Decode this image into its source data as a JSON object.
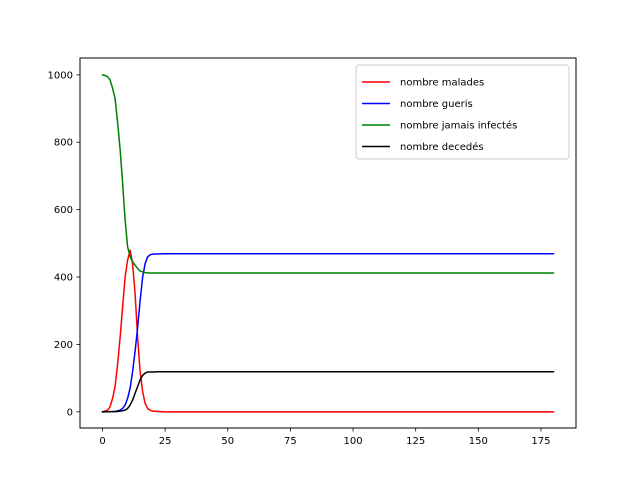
{
  "chart_data": {
    "type": "line",
    "title": "",
    "xlabel": "",
    "ylabel": "",
    "xlim": [
      -9,
      189
    ],
    "ylim": [
      -48,
      1050
    ],
    "xticks": [
      0,
      25,
      50,
      75,
      100,
      125,
      150,
      175
    ],
    "yticks": [
      0,
      200,
      400,
      600,
      800,
      1000
    ],
    "grid": false,
    "legend": {
      "placement": "top-right"
    },
    "series": [
      {
        "name": "nombre malades",
        "color": "#ff0000",
        "points": [
          [
            0,
            0
          ],
          [
            2,
            5
          ],
          [
            3,
            15
          ],
          [
            4,
            40
          ],
          [
            5,
            75
          ],
          [
            6,
            140
          ],
          [
            7,
            220
          ],
          [
            8,
            310
          ],
          [
            9,
            400
          ],
          [
            10,
            450
          ],
          [
            11,
            480
          ],
          [
            12,
            440
          ],
          [
            13,
            350
          ],
          [
            14,
            220
          ],
          [
            15,
            120
          ],
          [
            16,
            60
          ],
          [
            17,
            25
          ],
          [
            18,
            10
          ],
          [
            19,
            5
          ],
          [
            20,
            2
          ],
          [
            22,
            1
          ],
          [
            25,
            0
          ],
          [
            180,
            0
          ]
        ]
      },
      {
        "name": "nombre gueris",
        "color": "#0000ff",
        "points": [
          [
            0,
            0
          ],
          [
            5,
            1
          ],
          [
            7,
            5
          ],
          [
            8,
            10
          ],
          [
            9,
            20
          ],
          [
            10,
            40
          ],
          [
            11,
            70
          ],
          [
            12,
            120
          ],
          [
            13,
            180
          ],
          [
            14,
            250
          ],
          [
            15,
            330
          ],
          [
            16,
            400
          ],
          [
            17,
            440
          ],
          [
            18,
            460
          ],
          [
            19,
            466
          ],
          [
            20,
            468
          ],
          [
            25,
            469
          ],
          [
            180,
            469
          ]
        ]
      },
      {
        "name": "nombre jamais infectés",
        "color": "#008000",
        "points": [
          [
            0,
            1000
          ],
          [
            1,
            998
          ],
          [
            2,
            995
          ],
          [
            3,
            985
          ],
          [
            4,
            960
          ],
          [
            5,
            930
          ],
          [
            6,
            860
          ],
          [
            7,
            780
          ],
          [
            8,
            680
          ],
          [
            9,
            570
          ],
          [
            10,
            490
          ],
          [
            11,
            460
          ],
          [
            12,
            445
          ],
          [
            13,
            435
          ],
          [
            14,
            425
          ],
          [
            15,
            418
          ],
          [
            16,
            415
          ],
          [
            17,
            413
          ],
          [
            18,
            412
          ],
          [
            25,
            412
          ],
          [
            180,
            412
          ]
        ]
      },
      {
        "name": "nombre decedés",
        "color": "#000000",
        "points": [
          [
            0,
            0
          ],
          [
            6,
            1
          ],
          [
            8,
            3
          ],
          [
            9,
            5
          ],
          [
            10,
            10
          ],
          [
            11,
            20
          ],
          [
            12,
            35
          ],
          [
            13,
            55
          ],
          [
            14,
            75
          ],
          [
            15,
            95
          ],
          [
            16,
            108
          ],
          [
            17,
            115
          ],
          [
            18,
            118
          ],
          [
            20,
            118
          ],
          [
            22,
            119
          ],
          [
            25,
            119
          ],
          [
            180,
            119
          ]
        ]
      }
    ]
  }
}
